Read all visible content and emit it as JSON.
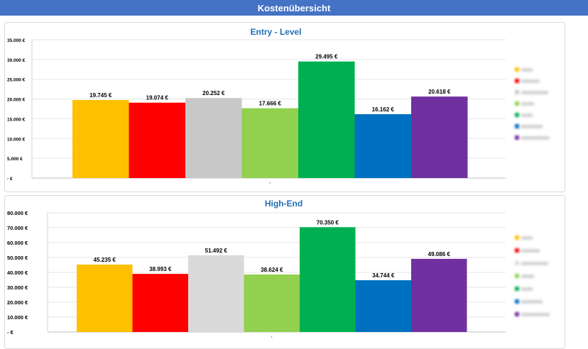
{
  "header": {
    "title": "Kostenübersicht"
  },
  "chart_data": [
    {
      "type": "bar",
      "title": "Entry - Level",
      "categories": [
        "1"
      ],
      "series": [
        {
          "color": "#ffc000",
          "values": [
            19745
          ],
          "label": "19.745 €"
        },
        {
          "color": "#ff0000",
          "values": [
            19074
          ],
          "label": "19.074 €"
        },
        {
          "color": "#c8c8c8",
          "values": [
            20252
          ],
          "label": "20.252 €"
        },
        {
          "color": "#92d050",
          "values": [
            17666
          ],
          "label": "17.666 €"
        },
        {
          "color": "#00b050",
          "values": [
            29495
          ],
          "label": "29.495 €"
        },
        {
          "color": "#0070c0",
          "values": [
            16162
          ],
          "label": "16.162 €"
        },
        {
          "color": "#7030a0",
          "values": [
            20618
          ],
          "label": "20.618 €"
        }
      ],
      "ylim": [
        0,
        35000
      ],
      "yticks": [
        {
          "v": 35000,
          "t": "35.000 €"
        },
        {
          "v": 30000,
          "t": "30.000 €"
        },
        {
          "v": 25000,
          "t": "25.000 €"
        },
        {
          "v": 20000,
          "t": "20.000 €"
        },
        {
          "v": 15000,
          "t": "15.000 €"
        },
        {
          "v": 10000,
          "t": "10.000 €"
        },
        {
          "v": 5000,
          "t": "5.000 €"
        },
        {
          "v": 0,
          "t": "-   €"
        }
      ],
      "grid": true,
      "legend": "right"
    },
    {
      "type": "bar",
      "title": "High-End",
      "categories": [
        "1"
      ],
      "series": [
        {
          "color": "#ffc000",
          "values": [
            45235
          ],
          "label": "45.235 €"
        },
        {
          "color": "#ff0000",
          "values": [
            38993
          ],
          "label": "38.993 €"
        },
        {
          "color": "#d9d9d9",
          "values": [
            51492
          ],
          "label": "51.492 €"
        },
        {
          "color": "#92d050",
          "values": [
            38624
          ],
          "label": "38.624 €"
        },
        {
          "color": "#00b050",
          "values": [
            70350
          ],
          "label": "70.350 €"
        },
        {
          "color": "#0070c0",
          "values": [
            34744
          ],
          "label": "34.744 €"
        },
        {
          "color": "#7030a0",
          "values": [
            49086
          ],
          "label": "49.086 €"
        }
      ],
      "ylim": [
        0,
        80000
      ],
      "yticks": [
        {
          "v": 80000,
          "t": "80.000 €"
        },
        {
          "v": 70000,
          "t": "70.000 €"
        },
        {
          "v": 60000,
          "t": "60.000 €"
        },
        {
          "v": 50000,
          "t": "50.000 €"
        },
        {
          "v": 40000,
          "t": "40.000 €"
        },
        {
          "v": 30000,
          "t": "30.000 €"
        },
        {
          "v": 20000,
          "t": "20.000 €"
        },
        {
          "v": 10000,
          "t": "10.000 €"
        },
        {
          "v": 0,
          "t": "-   €"
        }
      ],
      "grid": true,
      "legend": "right"
    }
  ]
}
